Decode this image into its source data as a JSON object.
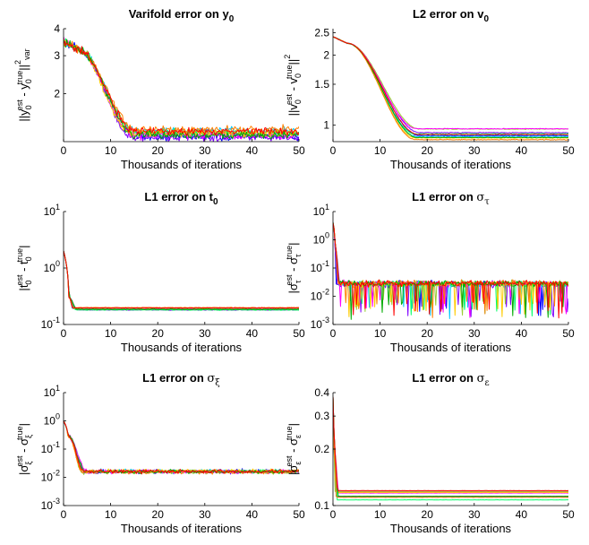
{
  "figure": {
    "xlabel": "Thousands of iterations",
    "series_colors": [
      "#0000ff",
      "#7f00ff",
      "#00c8ff",
      "#00ff66",
      "#9acd32",
      "#ff00ff",
      "#ffcc00",
      "#ff7f00",
      "#00aa00",
      "#ff0000"
    ]
  },
  "chart_data": [
    {
      "type": "line",
      "title_main": "Varifold error on y",
      "title_sub": "0",
      "title_greek": false,
      "ylabel_html": "||y_0^est - y_0^true||^2_var",
      "scale": "log",
      "ylim": [
        1.2,
        4
      ],
      "yticks": [
        2,
        3,
        4
      ],
      "ytick_labels": [
        "2",
        "3",
        "4"
      ],
      "xlim": [
        0,
        50
      ],
      "xticks": [
        0,
        10,
        20,
        30,
        40,
        50
      ],
      "xtick_labels": [
        "0",
        "10",
        "20",
        "30",
        "40",
        "50"
      ],
      "profile": {
        "start": 3.5,
        "plateau": 3.2,
        "plateau_end": 3,
        "drop_end": 15,
        "floor": 1.33,
        "noise": 0.06,
        "mult": true
      },
      "series_count": 10
    },
    {
      "type": "line",
      "title_main": "L2 error on v",
      "title_sub": "0",
      "title_greek": false,
      "scale": "log",
      "ylim": [
        0.85,
        2.6
      ],
      "yticks": [
        1,
        1.5,
        2,
        2.5
      ],
      "ytick_labels": [
        "1",
        "1.5",
        "2",
        "2.5"
      ],
      "xlim": [
        0,
        50
      ],
      "xticks": [
        0,
        10,
        20,
        30,
        40,
        50
      ],
      "xtick_labels": [
        "0",
        "10",
        "20",
        "30",
        "40",
        "50"
      ],
      "profile": {
        "start": 2.4,
        "plateau": 2.25,
        "plateau_end": 3,
        "drop_end": 18,
        "floor": 0.92,
        "noise": 0.005,
        "mult": true
      },
      "series_count": 10
    },
    {
      "type": "line",
      "title_main": "L1 error on t",
      "title_sub": "0",
      "title_greek": false,
      "scale": "log",
      "ylim": [
        0.1,
        10
      ],
      "yticks": [
        0.1,
        1,
        10
      ],
      "ytick_labels": [
        "10^-1",
        "10^0",
        "10^1"
      ],
      "xlim": [
        0,
        50
      ],
      "xticks": [
        0,
        10,
        20,
        30,
        40,
        50
      ],
      "xtick_labels": [
        "0",
        "10",
        "20",
        "30",
        "40",
        "50"
      ],
      "profile": {
        "start": 2.0,
        "plateau": 0.3,
        "plateau_end": 1.2,
        "drop_end": 2.5,
        "floor": 0.19,
        "noise": 0.02,
        "mult": true
      },
      "series_count": 10
    },
    {
      "type": "line",
      "title_main": "L1 error on ",
      "title_sub": "τ",
      "title_greek": true,
      "scale": "log",
      "ylim": [
        0.001,
        10
      ],
      "yticks": [
        0.001,
        0.01,
        0.1,
        1,
        10
      ],
      "ytick_labels": [
        "10^-3",
        "10^-2",
        "10^-1",
        "10^0",
        "10^1"
      ],
      "xlim": [
        0,
        50
      ],
      "xticks": [
        0,
        10,
        20,
        30,
        40,
        50
      ],
      "xtick_labels": [
        "0",
        "10",
        "20",
        "30",
        "40",
        "50"
      ],
      "profile": {
        "start": 4.0,
        "plateau": 0.5,
        "plateau_end": 0.5,
        "drop_end": 1.2,
        "floor": 0.028,
        "noise": 0.35,
        "mult": true,
        "spikes": true
      },
      "series_count": 10
    },
    {
      "type": "line",
      "title_main": "L1 error on ",
      "title_sub": "ξ",
      "title_greek": true,
      "scale": "log",
      "ylim": [
        0.001,
        10
      ],
      "yticks": [
        0.001,
        0.01,
        0.1,
        1,
        10
      ],
      "ytick_labels": [
        "10^-3",
        "10^-2",
        "10^-1",
        "10^0",
        "10^1"
      ],
      "xlim": [
        0,
        50
      ],
      "xticks": [
        0,
        10,
        20,
        30,
        40,
        50
      ],
      "xtick_labels": [
        "0",
        "10",
        "20",
        "30",
        "40",
        "50"
      ],
      "profile": {
        "start": 1.0,
        "plateau": 0.3,
        "plateau_end": 1.0,
        "drop_end": 4.5,
        "floor": 0.016,
        "noise": 0.22,
        "mult": true
      },
      "series_count": 10
    },
    {
      "type": "line",
      "title_main": "L1 error on ",
      "title_sub": "ε",
      "title_greek": true,
      "scale": "log",
      "ylim": [
        0.1,
        0.4
      ],
      "yticks": [
        0.1,
        0.2,
        0.3,
        0.4
      ],
      "ytick_labels": [
        "0.1",
        "0.2",
        "0.3",
        "0.4"
      ],
      "xlim": [
        0,
        50
      ],
      "xticks": [
        0,
        10,
        20,
        30,
        40,
        50
      ],
      "xtick_labels": [
        "0",
        "10",
        "20",
        "30",
        "40",
        "50"
      ],
      "profile": {
        "start": 0.38,
        "plateau": 0.2,
        "plateau_end": 0.3,
        "drop_end": 1.0,
        "floor": 0.114,
        "noise": 0.002,
        "mult": true
      },
      "series_count": 10
    }
  ]
}
